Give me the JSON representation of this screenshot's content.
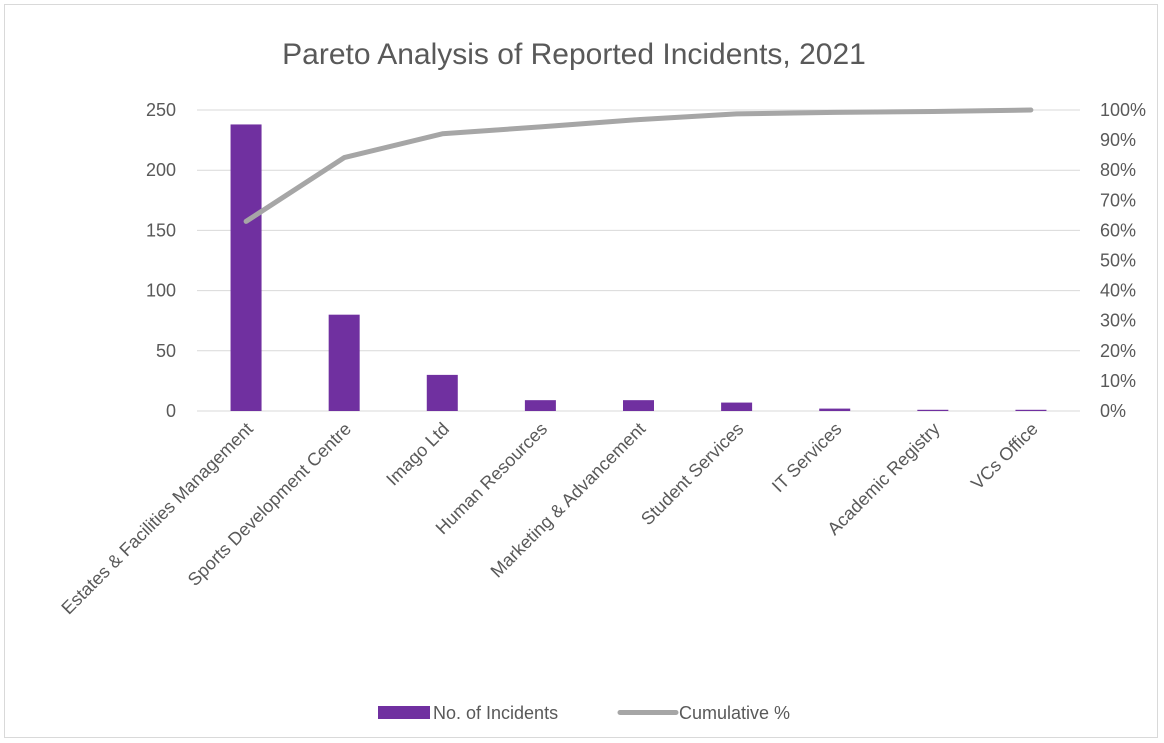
{
  "chart_data": {
    "type": "bar",
    "title": "Pareto Analysis of Reported Incidents, 2021",
    "categories": [
      "Estates & Facilities Management",
      "Sports Development Centre",
      "Imago Ltd",
      "Human Resources",
      "Marketing & Advancement",
      "Student Services",
      "IT Services",
      "Academic Registry",
      "VCs Office"
    ],
    "series": [
      {
        "name": "No. of Incidents",
        "type": "bar",
        "axis": "left",
        "color": "#7030a0",
        "values": [
          238,
          80,
          30,
          9,
          9,
          7,
          2,
          1,
          1
        ]
      },
      {
        "name": "Cumulative %",
        "type": "line",
        "axis": "right",
        "color": "#a6a6a6",
        "values": [
          63.0,
          84.2,
          92.1,
          94.4,
          96.8,
          98.7,
          99.2,
          99.5,
          100.0
        ]
      }
    ],
    "y_left": {
      "min": 0,
      "max": 250,
      "ticks": [
        "0",
        "50",
        "100",
        "150",
        "200",
        "250"
      ]
    },
    "y_right": {
      "min": 0,
      "max": 100,
      "ticks": [
        "0%",
        "10%",
        "20%",
        "30%",
        "40%",
        "50%",
        "60%",
        "70%",
        "80%",
        "90%",
        "100%"
      ]
    },
    "grid": true,
    "legend_position": "bottom"
  }
}
